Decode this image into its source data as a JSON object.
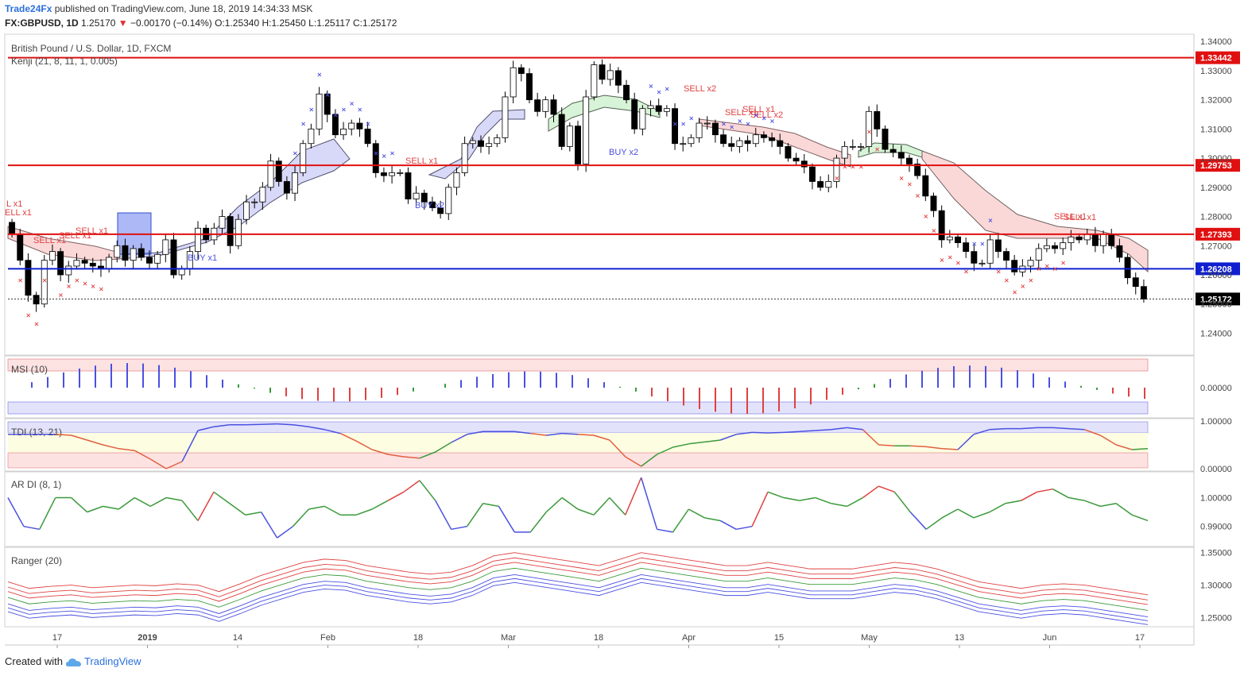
{
  "header": {
    "brand": "Trade24Fx",
    "published": "published on TradingView.com, June 18, 2019 14:34:33 MSK",
    "symbol": "FX:GBPUSD, 1D",
    "last": "1.25170",
    "change": "−0.00170 (−0.14%)",
    "ohlc": "O:1.25340 H:1.25450 L:1.25117 C:1.25172"
  },
  "footer": {
    "created_with": "Created with",
    "tradingview": "TradingView"
  },
  "colors": {
    "up": "#ffffff",
    "down": "#000000",
    "level_red": "#e01010",
    "level_blue": "#1020d0",
    "buy": "#4a50e0",
    "sell": "#e04040"
  },
  "chart_data": [
    {
      "type": "candlestick",
      "title": "British Pound / U.S. Dollar, 1D, FXCM",
      "subtitle": "Kenji (21, 8, 11, 1, 0.005)",
      "x_tick_labels": [
        "17",
        "2019",
        "14",
        "Feb",
        "18",
        "Mar",
        "18",
        "Apr",
        "15",
        "May",
        "13",
        "Jun",
        "17"
      ],
      "ylim": [
        1.2325,
        1.3425
      ],
      "y_ticks": [
        "1.34000",
        "1.33000",
        "1.32000",
        "1.31000",
        "1.30000",
        "1.29000",
        "1.28000",
        "1.27000",
        "1.26000",
        "1.25000",
        "1.24000"
      ],
      "levels": [
        {
          "value": 1.33442,
          "label": "1.33442",
          "color": "red"
        },
        {
          "value": 1.29753,
          "label": "1.29753",
          "color": "red"
        },
        {
          "value": 1.27393,
          "label": "1.27393",
          "color": "red"
        },
        {
          "value": 1.26208,
          "label": "1.26208",
          "color": "blue"
        },
        {
          "value": 1.25172,
          "label": "1.25172",
          "color": "black"
        }
      ],
      "closes": [
        1.274,
        1.265,
        1.253,
        1.25,
        1.265,
        1.268,
        1.26,
        1.263,
        1.265,
        1.264,
        1.263,
        1.262,
        1.266,
        1.27,
        1.265,
        1.269,
        1.266,
        1.264,
        1.267,
        1.272,
        1.26,
        1.262,
        1.268,
        1.276,
        1.272,
        1.276,
        1.28,
        1.27,
        1.279,
        1.285,
        1.285,
        1.29,
        1.299,
        1.292,
        1.288,
        1.295,
        1.305,
        1.31,
        1.322,
        1.315,
        1.308,
        1.31,
        1.312,
        1.31,
        1.305,
        1.295,
        1.294,
        1.295,
        1.295,
        1.286,
        1.288,
        1.285,
        1.283,
        1.281,
        1.29,
        1.295,
        1.305,
        1.306,
        1.304,
        1.305,
        1.307,
        1.321,
        1.331,
        1.329,
        1.32,
        1.316,
        1.32,
        1.315,
        1.304,
        1.311,
        1.298,
        1.321,
        1.332,
        1.327,
        1.33,
        1.325,
        1.32,
        1.31,
        1.317,
        1.318,
        1.316,
        1.317,
        1.305,
        1.305,
        1.307,
        1.312,
        1.312,
        1.308,
        1.305,
        1.304,
        1.306,
        1.305,
        1.308,
        1.307,
        1.306,
        1.304,
        1.3,
        1.299,
        1.297,
        1.292,
        1.29,
        1.292,
        1.3,
        1.304,
        1.304,
        1.304,
        1.316,
        1.31,
        1.303,
        1.302,
        1.3,
        1.298,
        1.294,
        1.287,
        1.282,
        1.272,
        1.273,
        1.271,
        1.268,
        1.264,
        1.264,
        1.272,
        1.268,
        1.265,
        1.261,
        1.263,
        1.265,
        1.269,
        1.27,
        1.269,
        1.271,
        1.273,
        1.272,
        1.274,
        1.27,
        1.274,
        1.27,
        1.266,
        1.259,
        1.256,
        1.2517
      ]
    },
    {
      "type": "bar",
      "title": "MSI (10)",
      "ylim": [
        -0.0016,
        0.0016
      ],
      "y_ticks": [
        "0.00000"
      ]
    },
    {
      "type": "line",
      "title": "TDI (13, 21)",
      "ylim": [
        -0.05,
        1.05
      ],
      "y_ticks": [
        "1.00000",
        "0.00000"
      ],
      "values": [
        0.72,
        0.72,
        0.72,
        0.72,
        0.7,
        0.6,
        0.5,
        0.42,
        0.38,
        0.2,
        0.0,
        0.15,
        0.8,
        0.88,
        0.92,
        0.92,
        0.93,
        0.94,
        0.92,
        0.88,
        0.82,
        0.74,
        0.58,
        0.4,
        0.3,
        0.25,
        0.22,
        0.35,
        0.55,
        0.72,
        0.78,
        0.78,
        0.78,
        0.74,
        0.7,
        0.74,
        0.72,
        0.7,
        0.6,
        0.25,
        0.05,
        0.3,
        0.45,
        0.52,
        0.56,
        0.6,
        0.72,
        0.76,
        0.75,
        0.76,
        0.78,
        0.8,
        0.82,
        0.86,
        0.82,
        0.5,
        0.48,
        0.48,
        0.46,
        0.42,
        0.4,
        0.72,
        0.82,
        0.84,
        0.84,
        0.86,
        0.86,
        0.84,
        0.82,
        0.7,
        0.5,
        0.4,
        0.42
      ]
    },
    {
      "type": "line",
      "title": "AR DI (8, 1)",
      "ylim": [
        0.983,
        1.009
      ],
      "y_ticks": [
        "1.00000",
        "0.99000"
      ],
      "values": [
        1.0,
        0.99,
        0.989,
        1.0,
        1.0,
        0.995,
        0.997,
        0.996,
        1.0,
        0.997,
        1.0,
        0.999,
        0.992,
        1.002,
        0.998,
        0.994,
        0.995,
        0.986,
        0.99,
        0.996,
        0.997,
        0.994,
        0.994,
        0.996,
        0.999,
        1.002,
        1.006,
        0.999,
        0.989,
        0.99,
        0.998,
        0.997,
        0.988,
        0.988,
        0.995,
        1.0,
        0.996,
        0.994,
        1.0,
        0.994,
        1.007,
        0.989,
        0.988,
        0.996,
        0.993,
        0.992,
        0.989,
        0.99,
        1.002,
        1.0,
        0.999,
        1.0,
        0.998,
        0.997,
        1.0,
        1.004,
        1.002,
        0.995,
        0.989,
        0.993,
        0.996,
        0.993,
        0.995,
        0.998,
        0.999,
        1.002,
        1.003,
        1.0,
        0.999,
        0.997,
        0.998,
        0.994,
        0.992
      ]
    },
    {
      "type": "line",
      "title": "Ranger (20)",
      "ylim": [
        1.237,
        1.357
      ],
      "y_ticks": [
        "1.35000",
        "1.30000",
        "1.25000"
      ],
      "values": [
        1.275,
        1.265,
        1.268,
        1.27,
        1.266,
        1.268,
        1.27,
        1.269,
        1.272,
        1.27,
        1.26,
        1.272,
        1.285,
        1.295,
        1.305,
        1.31,
        1.308,
        1.3,
        1.295,
        1.29,
        1.287,
        1.29,
        1.3,
        1.315,
        1.32,
        1.315,
        1.31,
        1.305,
        1.3,
        1.31,
        1.32,
        1.315,
        1.31,
        1.305,
        1.3,
        1.3,
        1.305,
        1.3,
        1.295,
        1.295,
        1.295,
        1.3,
        1.305,
        1.302,
        1.295,
        1.285,
        1.275,
        1.27,
        1.265,
        1.27,
        1.272,
        1.27,
        1.265,
        1.26,
        1.255
      ]
    }
  ]
}
